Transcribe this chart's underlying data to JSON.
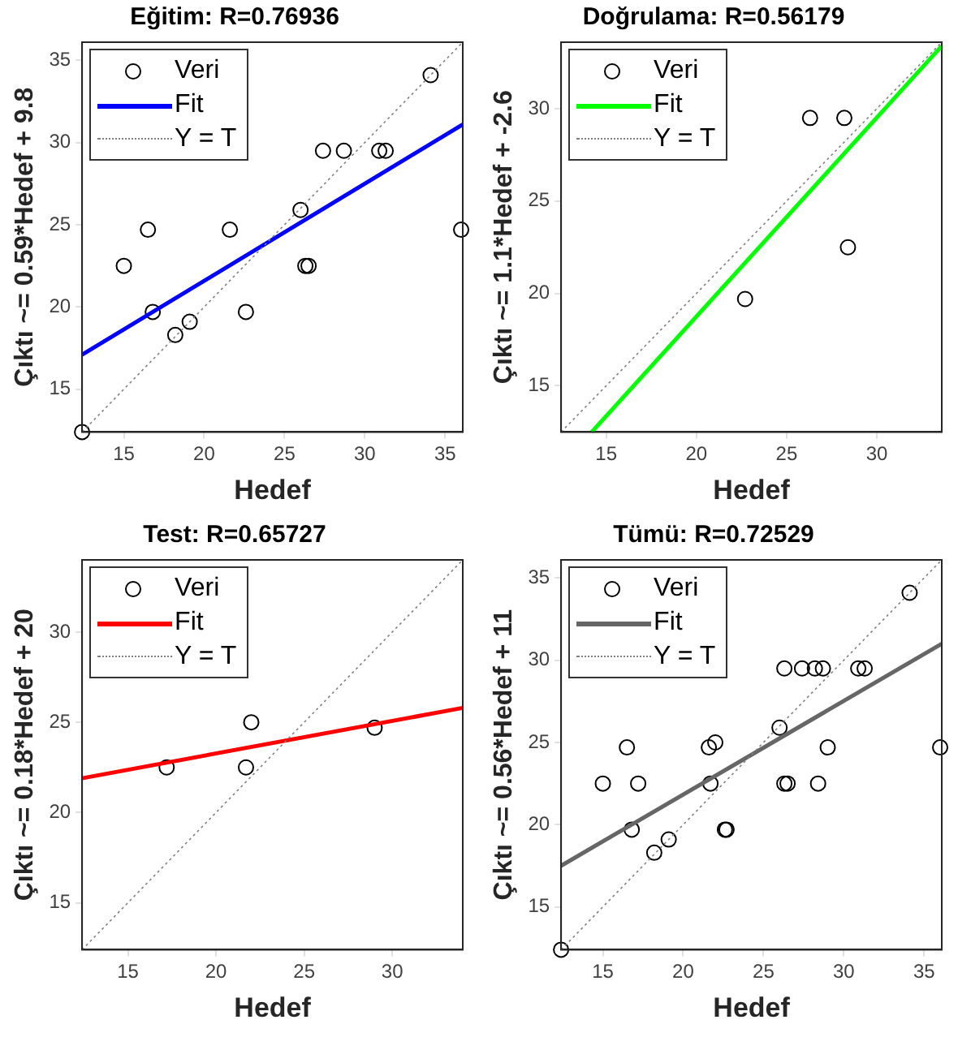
{
  "chart_data": [
    {
      "type": "scatter",
      "title": "Eğitim: R=0.76936",
      "xlabel": "Hedef",
      "ylabel": "Çıktı ~= 0.59*Hedef + 9.8",
      "xlim": [
        12.4,
        36.1
      ],
      "ylim": [
        12.4,
        36.1
      ],
      "xticks": [
        15,
        20,
        25,
        30,
        35
      ],
      "yticks": [
        15,
        20,
        25,
        30,
        35
      ],
      "grid": false,
      "legend": "top left",
      "series": [
        {
          "name": "Veri",
          "type": "scatter",
          "marker": "circle",
          "color": "#000000",
          "x": [
            12.4,
            15,
            16.5,
            16.8,
            18.2,
            19.1,
            21.6,
            22.6,
            26,
            26.3,
            26.5,
            27.4,
            28.7,
            30.9,
            31.3,
            34.1,
            36
          ],
          "values": [
            12.4,
            22.5,
            24.7,
            19.7,
            18.3,
            19.1,
            24.7,
            19.7,
            25.9,
            22.5,
            22.5,
            29.5,
            29.5,
            29.5,
            29.5,
            34.1,
            24.7
          ]
        },
        {
          "name": "Fit",
          "type": "line",
          "marker": "none",
          "color": "#0000ff",
          "x": [
            12.4,
            36.1
          ],
          "values": [
            17.1,
            31.1
          ]
        },
        {
          "name": "Y = T",
          "type": "line",
          "marker": "none",
          "line_style": "dotted",
          "color": "#808080",
          "x": [
            12.4,
            36.1
          ],
          "values": [
            12.4,
            36.1
          ]
        }
      ]
    },
    {
      "type": "scatter",
      "title": "Doğrulama: R=0.56179",
      "xlabel": "Hedef",
      "ylabel": "Çıktı ~= 1.1*Hedef + -2.6",
      "xlim": [
        12.5,
        33.6
      ],
      "ylim": [
        12.5,
        33.6
      ],
      "xticks": [
        15,
        20,
        25,
        30
      ],
      "yticks": [
        15,
        20,
        25,
        30
      ],
      "grid": false,
      "legend": "top left",
      "series": [
        {
          "name": "Veri",
          "type": "scatter",
          "marker": "circle",
          "color": "#000000",
          "x": [
            22.7,
            26.3,
            28.2,
            28.4
          ],
          "values": [
            19.7,
            29.5,
            29.5,
            22.5
          ]
        },
        {
          "name": "Fit",
          "type": "line",
          "marker": "none",
          "color": "#00ff00",
          "x": [
            14.2,
            33.6
          ],
          "values": [
            12.5,
            33.4
          ]
        },
        {
          "name": "Y = T",
          "type": "line",
          "marker": "none",
          "line_style": "dotted",
          "color": "#808080",
          "x": [
            12.5,
            33.6
          ],
          "values": [
            12.5,
            33.6
          ]
        }
      ]
    },
    {
      "type": "scatter",
      "title": "Test: R=0.65727",
      "xlabel": "Hedef",
      "ylabel": "Çıktı ~= 0.18*Hedef + 20",
      "xlim": [
        12.4,
        34
      ],
      "ylim": [
        12.4,
        34
      ],
      "xticks": [
        15,
        20,
        25,
        30
      ],
      "yticks": [
        15,
        20,
        25,
        30
      ],
      "grid": false,
      "legend": "top left",
      "series": [
        {
          "name": "Veri",
          "type": "scatter",
          "marker": "circle",
          "color": "#000000",
          "x": [
            17.2,
            21.7,
            22,
            29
          ],
          "values": [
            22.5,
            22.5,
            25,
            24.7
          ]
        },
        {
          "name": "Fit",
          "type": "line",
          "marker": "none",
          "color": "#ff0000",
          "x": [
            12.4,
            34
          ],
          "values": [
            21.9,
            25.8
          ]
        },
        {
          "name": "Y = T",
          "type": "line",
          "marker": "none",
          "line_style": "dotted",
          "color": "#808080",
          "x": [
            12.4,
            34
          ],
          "values": [
            12.4,
            34
          ]
        }
      ]
    },
    {
      "type": "scatter",
      "title": "Tümü: R=0.72529",
      "xlabel": "Hedef",
      "ylabel": "Çıktı ~= 0.56*Hedef + 11",
      "xlim": [
        12.4,
        36.1
      ],
      "ylim": [
        12.4,
        36.1
      ],
      "xticks": [
        15,
        20,
        25,
        30,
        35
      ],
      "yticks": [
        15,
        20,
        25,
        30,
        35
      ],
      "grid": false,
      "legend": "top left",
      "series": [
        {
          "name": "Veri",
          "type": "scatter",
          "marker": "circle",
          "color": "#000000",
          "x": [
            12.4,
            15,
            16.5,
            16.8,
            17.2,
            18.2,
            19.1,
            21.6,
            21.7,
            22,
            22.6,
            22.7,
            26,
            26.3,
            26.5,
            26.3,
            27.4,
            28.2,
            28.4,
            28.7,
            29,
            30.9,
            31.3,
            34.1,
            36
          ],
          "values": [
            12.4,
            22.5,
            24.7,
            19.7,
            22.5,
            18.3,
            19.1,
            24.7,
            22.5,
            25,
            19.7,
            19.7,
            25.9,
            22.5,
            22.5,
            29.5,
            29.5,
            29.5,
            22.5,
            29.5,
            24.7,
            29.5,
            29.5,
            34.1,
            24.7
          ]
        },
        {
          "name": "Fit",
          "type": "line",
          "marker": "none",
          "color": "#666666",
          "x": [
            12.4,
            36.1
          ],
          "values": [
            17.5,
            31.0
          ]
        },
        {
          "name": "Y = T",
          "type": "line",
          "marker": "none",
          "line_style": "dotted",
          "color": "#808080",
          "x": [
            12.4,
            36.1
          ],
          "values": [
            12.4,
            36.1
          ]
        }
      ]
    }
  ]
}
